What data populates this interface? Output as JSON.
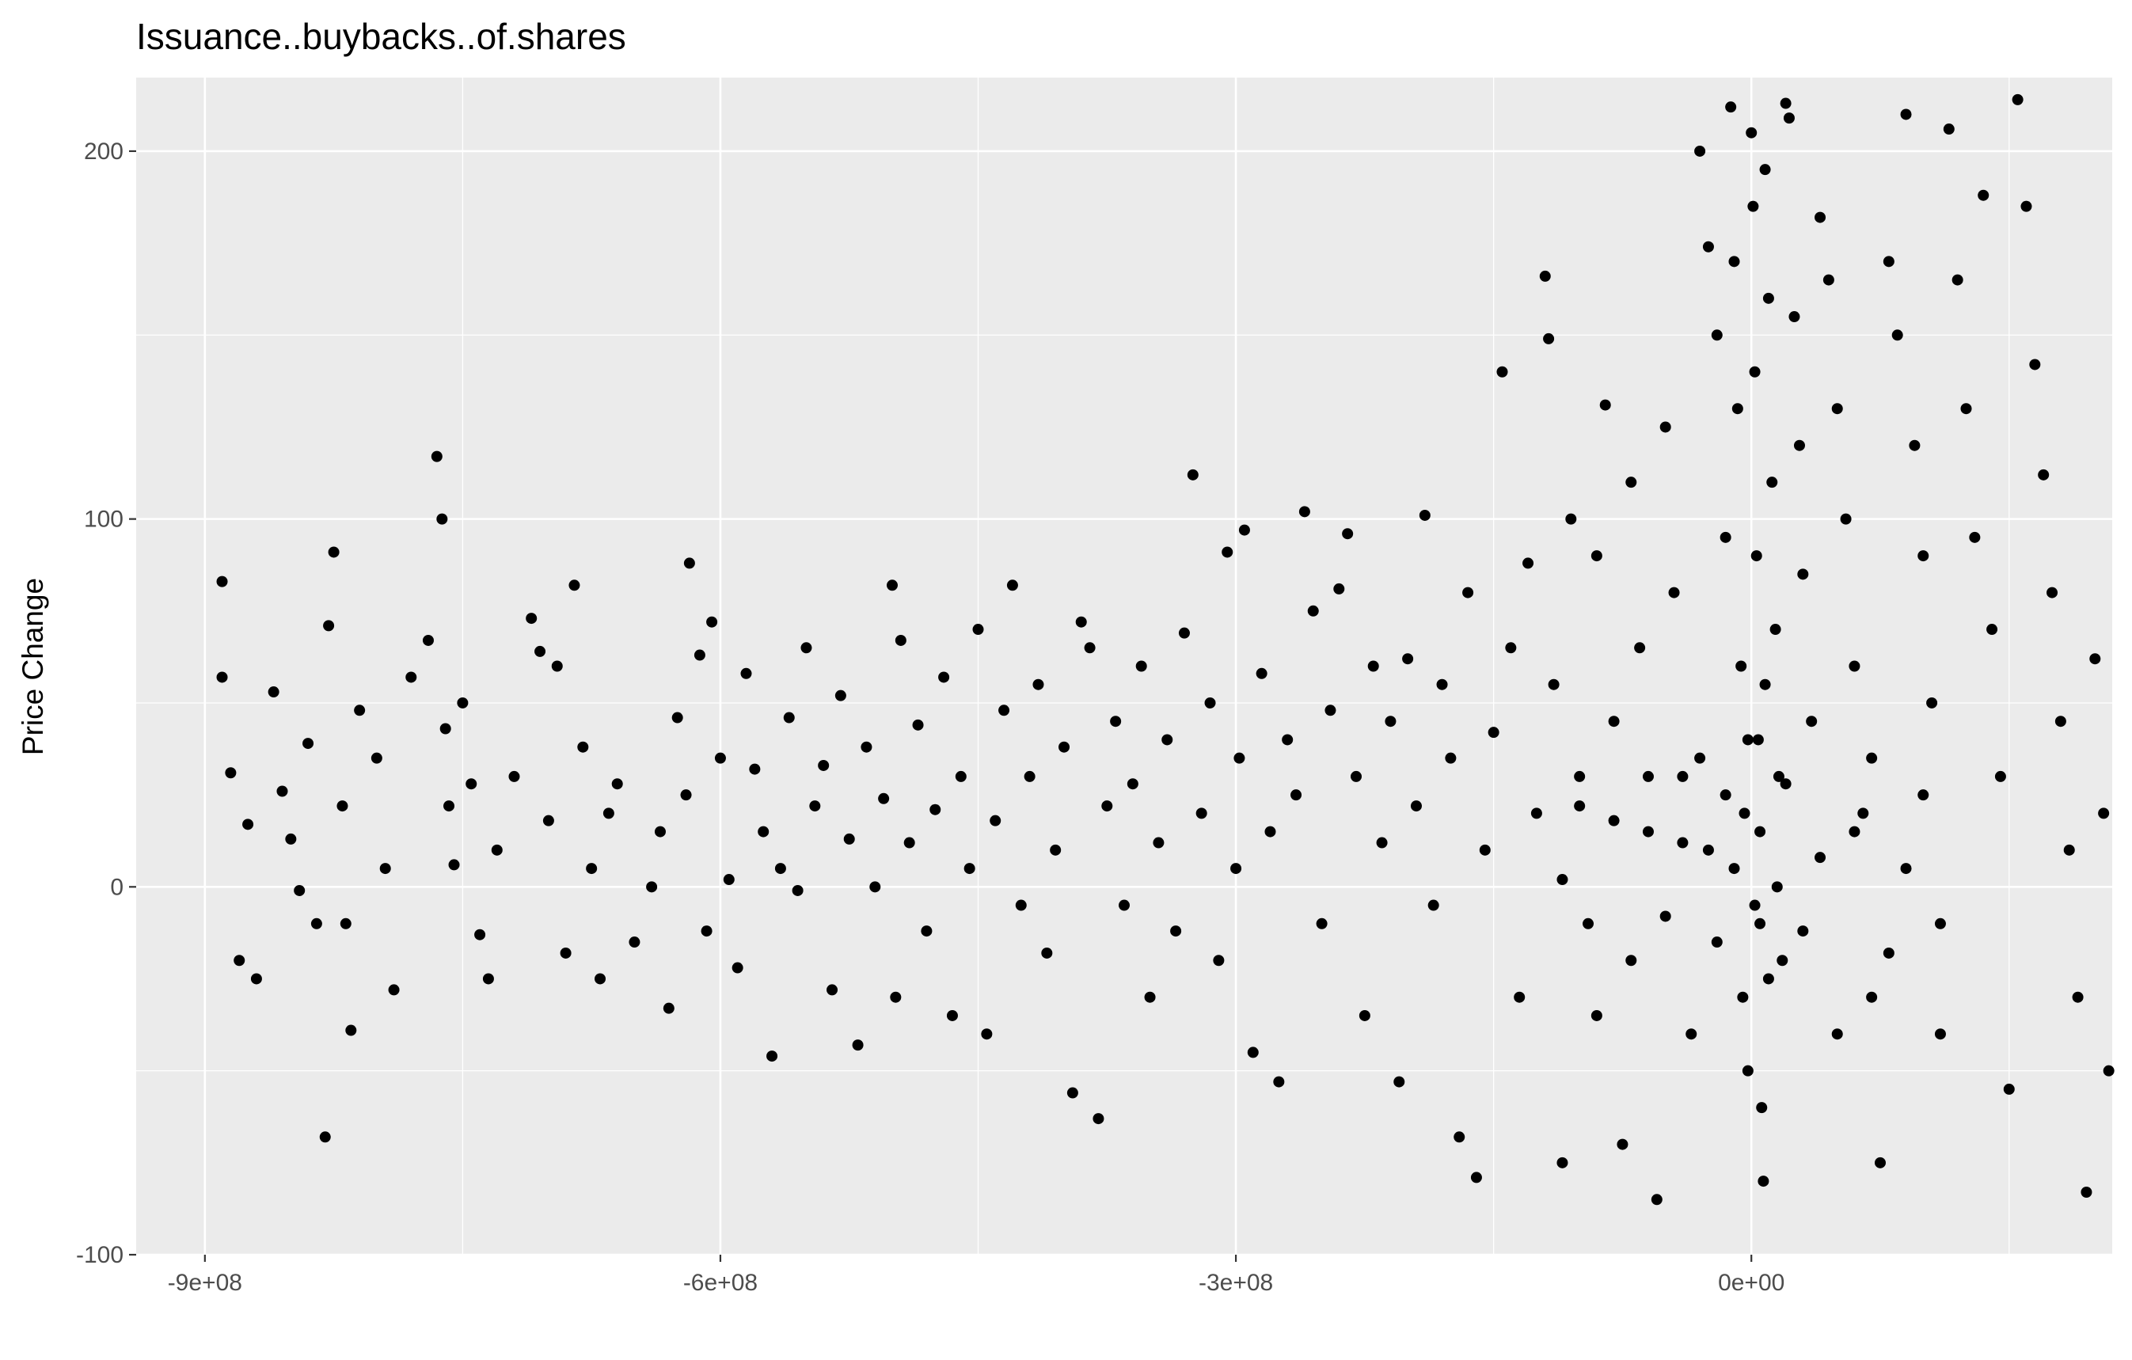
{
  "chart_data": {
    "type": "scatter",
    "title": "Issuance..buybacks..of.shares",
    "xlabel": "",
    "ylabel": "Price Change",
    "xlim": [
      -940000000,
      210000000
    ],
    "ylim": [
      -100,
      220
    ],
    "x_ticks": [
      {
        "value": -900000000,
        "label": "-9e+08"
      },
      {
        "value": -600000000,
        "label": "-6e+08"
      },
      {
        "value": -300000000,
        "label": "-3e+08"
      },
      {
        "value": 0,
        "label": "0e+00"
      }
    ],
    "y_ticks": [
      {
        "value": -100,
        "label": "-100"
      },
      {
        "value": 0,
        "label": "0"
      },
      {
        "value": 100,
        "label": "100"
      },
      {
        "value": 200,
        "label": "200"
      }
    ],
    "grid": true,
    "legend": "none",
    "series": [
      {
        "name": "points",
        "points": [
          [
            -890000000,
            83
          ],
          [
            -890000000,
            57
          ],
          [
            -885000000,
            31
          ],
          [
            -880000000,
            -20
          ],
          [
            -875000000,
            17
          ],
          [
            -870000000,
            -25
          ],
          [
            -860000000,
            53
          ],
          [
            -855000000,
            26
          ],
          [
            -850000000,
            13
          ],
          [
            -845000000,
            -1
          ],
          [
            -840000000,
            39
          ],
          [
            -835000000,
            -10
          ],
          [
            -830000000,
            -68
          ],
          [
            -828000000,
            71
          ],
          [
            -825000000,
            91
          ],
          [
            -820000000,
            22
          ],
          [
            -818000000,
            -10
          ],
          [
            -815000000,
            -39
          ],
          [
            -810000000,
            48
          ],
          [
            -800000000,
            35
          ],
          [
            -795000000,
            5
          ],
          [
            -790000000,
            -28
          ],
          [
            -780000000,
            57
          ],
          [
            -770000000,
            67
          ],
          [
            -765000000,
            117
          ],
          [
            -762000000,
            100
          ],
          [
            -760000000,
            43
          ],
          [
            -758000000,
            22
          ],
          [
            -755000000,
            6
          ],
          [
            -750000000,
            50
          ],
          [
            -745000000,
            28
          ],
          [
            -740000000,
            -13
          ],
          [
            -735000000,
            -25
          ],
          [
            -730000000,
            10
          ],
          [
            -720000000,
            30
          ],
          [
            -710000000,
            73
          ],
          [
            -705000000,
            64
          ],
          [
            -700000000,
            18
          ],
          [
            -695000000,
            60
          ],
          [
            -690000000,
            -18
          ],
          [
            -685000000,
            82
          ],
          [
            -680000000,
            38
          ],
          [
            -675000000,
            5
          ],
          [
            -670000000,
            -25
          ],
          [
            -665000000,
            20
          ],
          [
            -660000000,
            28
          ],
          [
            -650000000,
            -15
          ],
          [
            -640000000,
            0
          ],
          [
            -635000000,
            15
          ],
          [
            -630000000,
            -33
          ],
          [
            -625000000,
            46
          ],
          [
            -620000000,
            25
          ],
          [
            -618000000,
            88
          ],
          [
            -612000000,
            63
          ],
          [
            -608000000,
            -12
          ],
          [
            -605000000,
            72
          ],
          [
            -600000000,
            35
          ],
          [
            -595000000,
            2
          ],
          [
            -590000000,
            -22
          ],
          [
            -585000000,
            58
          ],
          [
            -580000000,
            32
          ],
          [
            -575000000,
            15
          ],
          [
            -570000000,
            -46
          ],
          [
            -565000000,
            5
          ],
          [
            -560000000,
            46
          ],
          [
            -555000000,
            -1
          ],
          [
            -550000000,
            65
          ],
          [
            -545000000,
            22
          ],
          [
            -540000000,
            33
          ],
          [
            -535000000,
            -28
          ],
          [
            -530000000,
            52
          ],
          [
            -525000000,
            13
          ],
          [
            -520000000,
            -43
          ],
          [
            -515000000,
            38
          ],
          [
            -510000000,
            0
          ],
          [
            -505000000,
            24
          ],
          [
            -500000000,
            82
          ],
          [
            -498000000,
            -30
          ],
          [
            -495000000,
            67
          ],
          [
            -490000000,
            12
          ],
          [
            -485000000,
            44
          ],
          [
            -480000000,
            -12
          ],
          [
            -475000000,
            21
          ],
          [
            -470000000,
            57
          ],
          [
            -465000000,
            -35
          ],
          [
            -460000000,
            30
          ],
          [
            -455000000,
            5
          ],
          [
            -450000000,
            70
          ],
          [
            -445000000,
            -40
          ],
          [
            -440000000,
            18
          ],
          [
            -435000000,
            48
          ],
          [
            -430000000,
            82
          ],
          [
            -425000000,
            -5
          ],
          [
            -420000000,
            30
          ],
          [
            -415000000,
            55
          ],
          [
            -410000000,
            -18
          ],
          [
            -405000000,
            10
          ],
          [
            -400000000,
            38
          ],
          [
            -395000000,
            -56
          ],
          [
            -390000000,
            72
          ],
          [
            -385000000,
            65
          ],
          [
            -380000000,
            -63
          ],
          [
            -375000000,
            22
          ],
          [
            -370000000,
            45
          ],
          [
            -365000000,
            -5
          ],
          [
            -360000000,
            28
          ],
          [
            -355000000,
            60
          ],
          [
            -350000000,
            -30
          ],
          [
            -345000000,
            12
          ],
          [
            -340000000,
            40
          ],
          [
            -335000000,
            -12
          ],
          [
            -330000000,
            69
          ],
          [
            -325000000,
            112
          ],
          [
            -320000000,
            20
          ],
          [
            -315000000,
            50
          ],
          [
            -310000000,
            -20
          ],
          [
            -305000000,
            91
          ],
          [
            -300000000,
            5
          ],
          [
            -298000000,
            35
          ],
          [
            -295000000,
            97
          ],
          [
            -290000000,
            -45
          ],
          [
            -285000000,
            58
          ],
          [
            -280000000,
            15
          ],
          [
            -275000000,
            -53
          ],
          [
            -270000000,
            40
          ],
          [
            -265000000,
            25
          ],
          [
            -260000000,
            102
          ],
          [
            -255000000,
            75
          ],
          [
            -250000000,
            -10
          ],
          [
            -245000000,
            48
          ],
          [
            -240000000,
            81
          ],
          [
            -235000000,
            96
          ],
          [
            -230000000,
            30
          ],
          [
            -225000000,
            -35
          ],
          [
            -220000000,
            60
          ],
          [
            -215000000,
            12
          ],
          [
            -210000000,
            45
          ],
          [
            -205000000,
            -53
          ],
          [
            -200000000,
            62
          ],
          [
            -195000000,
            22
          ],
          [
            -190000000,
            101
          ],
          [
            -185000000,
            -5
          ],
          [
            -180000000,
            55
          ],
          [
            -175000000,
            35
          ],
          [
            -170000000,
            -68
          ],
          [
            -165000000,
            80
          ],
          [
            -160000000,
            -79
          ],
          [
            -155000000,
            10
          ],
          [
            -150000000,
            42
          ],
          [
            -145000000,
            140
          ],
          [
            -140000000,
            65
          ],
          [
            -135000000,
            -30
          ],
          [
            -130000000,
            88
          ],
          [
            -125000000,
            20
          ],
          [
            -120000000,
            166
          ],
          [
            -118000000,
            149
          ],
          [
            -115000000,
            55
          ],
          [
            -110000000,
            -75
          ],
          [
            -105000000,
            100
          ],
          [
            -100000000,
            30
          ],
          [
            -95000000,
            -10
          ],
          [
            -90000000,
            90
          ],
          [
            -85000000,
            131
          ],
          [
            -80000000,
            45
          ],
          [
            -75000000,
            -70
          ],
          [
            -70000000,
            110
          ],
          [
            -65000000,
            65
          ],
          [
            -60000000,
            15
          ],
          [
            -55000000,
            -85
          ],
          [
            -50000000,
            125
          ],
          [
            -45000000,
            80
          ],
          [
            -40000000,
            30
          ],
          [
            -35000000,
            -40
          ],
          [
            -30000000,
            200
          ],
          [
            -25000000,
            174
          ],
          [
            -20000000,
            150
          ],
          [
            -15000000,
            95
          ],
          [
            -12000000,
            212
          ],
          [
            -10000000,
            170
          ],
          [
            -8000000,
            130
          ],
          [
            -6000000,
            60
          ],
          [
            -4000000,
            20
          ],
          [
            -2000000,
            -50
          ],
          [
            0,
            205
          ],
          [
            1000000,
            185
          ],
          [
            2000000,
            140
          ],
          [
            3000000,
            90
          ],
          [
            4000000,
            40
          ],
          [
            5000000,
            -10
          ],
          [
            6000000,
            -60
          ],
          [
            7000000,
            -80
          ],
          [
            8000000,
            195
          ],
          [
            10000000,
            160
          ],
          [
            12000000,
            110
          ],
          [
            14000000,
            70
          ],
          [
            16000000,
            30
          ],
          [
            18000000,
            -20
          ],
          [
            20000000,
            213
          ],
          [
            22000000,
            209
          ],
          [
            25000000,
            155
          ],
          [
            28000000,
            120
          ],
          [
            30000000,
            85
          ],
          [
            35000000,
            45
          ],
          [
            40000000,
            182
          ],
          [
            45000000,
            165
          ],
          [
            50000000,
            130
          ],
          [
            55000000,
            100
          ],
          [
            60000000,
            60
          ],
          [
            65000000,
            20
          ],
          [
            70000000,
            -30
          ],
          [
            75000000,
            -75
          ],
          [
            80000000,
            170
          ],
          [
            85000000,
            150
          ],
          [
            90000000,
            210
          ],
          [
            95000000,
            120
          ],
          [
            100000000,
            90
          ],
          [
            105000000,
            50
          ],
          [
            110000000,
            -40
          ],
          [
            115000000,
            206
          ],
          [
            120000000,
            165
          ],
          [
            125000000,
            130
          ],
          [
            130000000,
            95
          ],
          [
            135000000,
            188
          ],
          [
            140000000,
            70
          ],
          [
            145000000,
            30
          ],
          [
            150000000,
            -55
          ],
          [
            155000000,
            214
          ],
          [
            160000000,
            185
          ],
          [
            165000000,
            142
          ],
          [
            170000000,
            112
          ],
          [
            175000000,
            80
          ],
          [
            180000000,
            45
          ],
          [
            185000000,
            10
          ],
          [
            190000000,
            -30
          ],
          [
            195000000,
            -83
          ],
          [
            200000000,
            62
          ],
          [
            205000000,
            20
          ],
          [
            208000000,
            -50
          ],
          [
            -30000000,
            35
          ],
          [
            -25000000,
            10
          ],
          [
            -20000000,
            -15
          ],
          [
            -15000000,
            25
          ],
          [
            -10000000,
            5
          ],
          [
            -5000000,
            -30
          ],
          [
            -2000000,
            40
          ],
          [
            2000000,
            -5
          ],
          [
            5000000,
            15
          ],
          [
            8000000,
            55
          ],
          [
            10000000,
            -25
          ],
          [
            15000000,
            0
          ],
          [
            -40000000,
            12
          ],
          [
            -50000000,
            -8
          ],
          [
            -60000000,
            30
          ],
          [
            -70000000,
            -20
          ],
          [
            -80000000,
            18
          ],
          [
            -90000000,
            -35
          ],
          [
            -100000000,
            22
          ],
          [
            -110000000,
            2
          ],
          [
            20000000,
            28
          ],
          [
            30000000,
            -12
          ],
          [
            40000000,
            8
          ],
          [
            50000000,
            -40
          ],
          [
            60000000,
            15
          ],
          [
            70000000,
            35
          ],
          [
            80000000,
            -18
          ],
          [
            90000000,
            5
          ],
          [
            100000000,
            25
          ],
          [
            110000000,
            -10
          ]
        ]
      }
    ]
  }
}
